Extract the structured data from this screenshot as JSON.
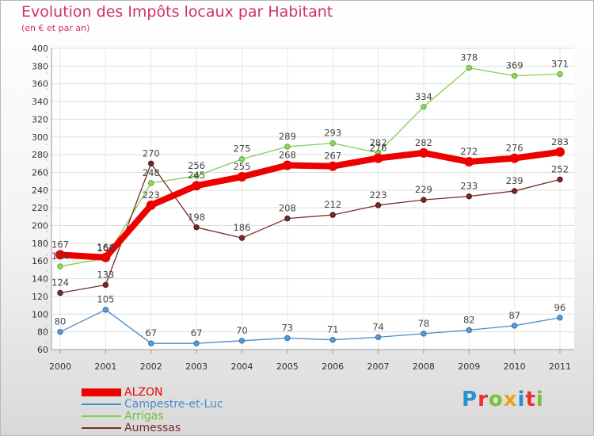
{
  "title": "Evolution des Impôts locaux par Habitant",
  "subtitle": "(en € et par an)",
  "logo": "Proxiti",
  "chart_data": {
    "type": "line",
    "x": [
      "2000",
      "2001",
      "2002",
      "2003",
      "2004",
      "2005",
      "2006",
      "2007",
      "2008",
      "2009",
      "2010",
      "2011"
    ],
    "ylim": [
      60,
      400
    ],
    "yticks": [
      60,
      80,
      100,
      120,
      140,
      160,
      180,
      200,
      220,
      240,
      260,
      280,
      300,
      320,
      340,
      360,
      380,
      400
    ],
    "grid": true,
    "legend_position": "bottom-left",
    "series": [
      {
        "name": "ALZON",
        "color": "#ee0000",
        "values": [
          167,
          164,
          223,
          245,
          255,
          268,
          267,
          276,
          282,
          272,
          276,
          283
        ]
      },
      {
        "name": "Campestre-et-Luc",
        "color": "#4a8ac8",
        "values": [
          80,
          105,
          67,
          67,
          70,
          73,
          71,
          74,
          78,
          82,
          87,
          96
        ]
      },
      {
        "name": "Arrigas",
        "color": "#80d050",
        "values": [
          154,
          163,
          248,
          256,
          275,
          289,
          293,
          282,
          334,
          378,
          369,
          371
        ]
      },
      {
        "name": "Aumessas",
        "color": "#7a2a2a",
        "values": [
          124,
          133,
          270,
          198,
          186,
          208,
          212,
          223,
          229,
          233,
          239,
          252
        ]
      }
    ]
  }
}
